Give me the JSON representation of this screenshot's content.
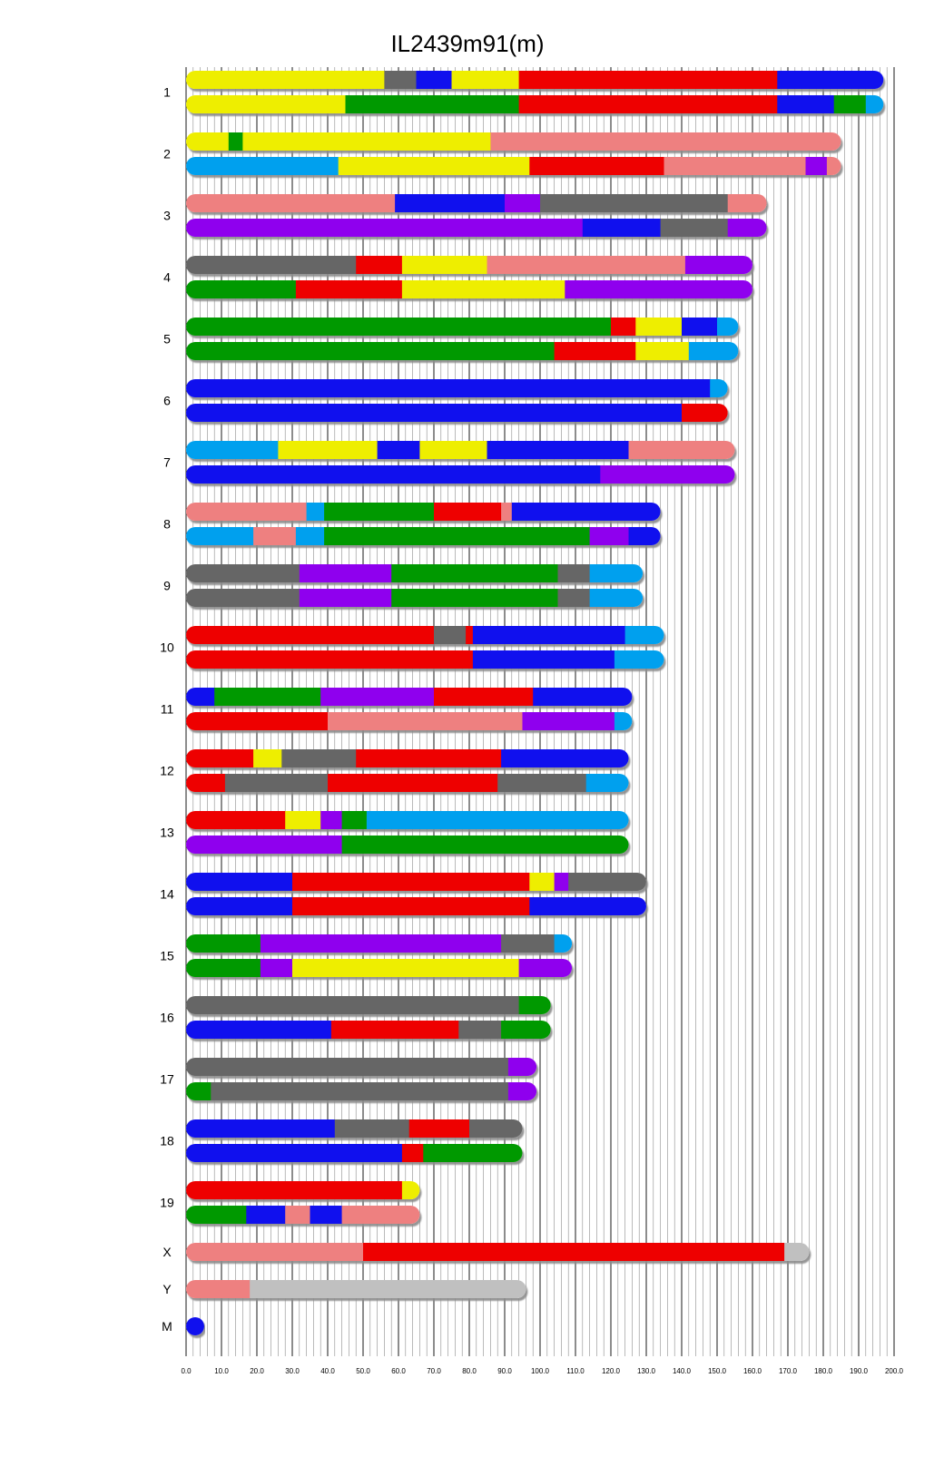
{
  "chart_data": {
    "type": "bar",
    "title": "IL2439m91(m)",
    "xlim": [
      0,
      200
    ],
    "x_ticks": [
      "0.0",
      "10.0",
      "20.0",
      "30.0",
      "40.0",
      "50.0",
      "60.0",
      "70.0",
      "80.0",
      "90.0",
      "100.0",
      "110.0",
      "120.0",
      "130.0",
      "140.0",
      "150.0",
      "160.0",
      "170.0",
      "180.0",
      "190.0",
      "200.0"
    ],
    "grid": true,
    "palette": {
      "Y": "#eeee00",
      "G": "#666666",
      "B": "#1010ee",
      "R": "#ee0000",
      "N": "#009900",
      "C": "#00a0ee",
      "P": "#ee8080",
      "V": "#8f00ee",
      "L": "#c0c0c0"
    },
    "chromosomes": [
      {
        "name": "1",
        "length": 197,
        "tracks": [
          [
            [
              0,
              56,
              "Y"
            ],
            [
              56,
              65,
              "G"
            ],
            [
              65,
              75,
              "B"
            ],
            [
              75,
              94,
              "Y"
            ],
            [
              94,
              167,
              "R"
            ],
            [
              167,
              197,
              "B"
            ]
          ],
          [
            [
              0,
              45,
              "Y"
            ],
            [
              45,
              94,
              "N"
            ],
            [
              94,
              167,
              "R"
            ],
            [
              167,
              183,
              "B"
            ],
            [
              183,
              192,
              "N"
            ],
            [
              192,
              197,
              "C"
            ]
          ]
        ]
      },
      {
        "name": "2",
        "length": 185,
        "tracks": [
          [
            [
              0,
              12,
              "Y"
            ],
            [
              12,
              16,
              "N"
            ],
            [
              16,
              86,
              "Y"
            ],
            [
              86,
              185,
              "P"
            ]
          ],
          [
            [
              0,
              43,
              "C"
            ],
            [
              43,
              97,
              "Y"
            ],
            [
              97,
              135,
              "R"
            ],
            [
              135,
              175,
              "P"
            ],
            [
              175,
              181,
              "V"
            ],
            [
              181,
              185,
              "P"
            ]
          ]
        ]
      },
      {
        "name": "3",
        "length": 164,
        "tracks": [
          [
            [
              0,
              59,
              "P"
            ],
            [
              59,
              90,
              "B"
            ],
            [
              90,
              100,
              "V"
            ],
            [
              100,
              153,
              "G"
            ],
            [
              153,
              164,
              "P"
            ]
          ],
          [
            [
              0,
              112,
              "V"
            ],
            [
              112,
              134,
              "B"
            ],
            [
              134,
              153,
              "G"
            ],
            [
              153,
              164,
              "V"
            ]
          ]
        ]
      },
      {
        "name": "4",
        "length": 160,
        "tracks": [
          [
            [
              0,
              48,
              "G"
            ],
            [
              48,
              61,
              "R"
            ],
            [
              61,
              85,
              "Y"
            ],
            [
              85,
              141,
              "P"
            ],
            [
              141,
              160,
              "V"
            ]
          ],
          [
            [
              0,
              31,
              "N"
            ],
            [
              31,
              61,
              "R"
            ],
            [
              61,
              107,
              "Y"
            ],
            [
              107,
              160,
              "V"
            ]
          ]
        ]
      },
      {
        "name": "5",
        "length": 156,
        "tracks": [
          [
            [
              0,
              120,
              "N"
            ],
            [
              120,
              127,
              "R"
            ],
            [
              127,
              140,
              "Y"
            ],
            [
              140,
              150,
              "B"
            ],
            [
              150,
              156,
              "C"
            ]
          ],
          [
            [
              0,
              104,
              "N"
            ],
            [
              104,
              127,
              "R"
            ],
            [
              127,
              142,
              "Y"
            ],
            [
              142,
              156,
              "C"
            ]
          ]
        ]
      },
      {
        "name": "6",
        "length": 153,
        "tracks": [
          [
            [
              0,
              148,
              "B"
            ],
            [
              148,
              153,
              "C"
            ]
          ],
          [
            [
              0,
              140,
              "B"
            ],
            [
              140,
              153,
              "R"
            ]
          ]
        ]
      },
      {
        "name": "7",
        "length": 155,
        "tracks": [
          [
            [
              0,
              26,
              "C"
            ],
            [
              26,
              54,
              "Y"
            ],
            [
              54,
              66,
              "B"
            ],
            [
              66,
              85,
              "Y"
            ],
            [
              85,
              125,
              "B"
            ],
            [
              125,
              155,
              "P"
            ]
          ],
          [
            [
              0,
              117,
              "B"
            ],
            [
              117,
              155,
              "V"
            ]
          ]
        ]
      },
      {
        "name": "8",
        "length": 134,
        "tracks": [
          [
            [
              0,
              34,
              "P"
            ],
            [
              34,
              39,
              "C"
            ],
            [
              39,
              70,
              "N"
            ],
            [
              70,
              89,
              "R"
            ],
            [
              89,
              92,
              "P"
            ],
            [
              92,
              134,
              "B"
            ]
          ],
          [
            [
              0,
              19,
              "C"
            ],
            [
              19,
              31,
              "P"
            ],
            [
              31,
              39,
              "C"
            ],
            [
              39,
              114,
              "N"
            ],
            [
              114,
              125,
              "V"
            ],
            [
              125,
              134,
              "B"
            ]
          ]
        ]
      },
      {
        "name": "9",
        "length": 129,
        "tracks": [
          [
            [
              0,
              32,
              "G"
            ],
            [
              32,
              58,
              "V"
            ],
            [
              58,
              105,
              "N"
            ],
            [
              105,
              114,
              "G"
            ],
            [
              114,
              129,
              "C"
            ]
          ],
          [
            [
              0,
              32,
              "G"
            ],
            [
              32,
              58,
              "V"
            ],
            [
              58,
              105,
              "N"
            ],
            [
              105,
              114,
              "G"
            ],
            [
              114,
              129,
              "C"
            ]
          ]
        ]
      },
      {
        "name": "10",
        "length": 135,
        "tracks": [
          [
            [
              0,
              70,
              "R"
            ],
            [
              70,
              79,
              "G"
            ],
            [
              79,
              81,
              "R"
            ],
            [
              81,
              124,
              "B"
            ],
            [
              124,
              135,
              "C"
            ]
          ],
          [
            [
              0,
              81,
              "R"
            ],
            [
              81,
              121,
              "B"
            ],
            [
              121,
              135,
              "C"
            ]
          ]
        ]
      },
      {
        "name": "11",
        "length": 126,
        "tracks": [
          [
            [
              0,
              8,
              "B"
            ],
            [
              8,
              38,
              "N"
            ],
            [
              38,
              70,
              "V"
            ],
            [
              70,
              98,
              "R"
            ],
            [
              98,
              126,
              "B"
            ]
          ],
          [
            [
              0,
              40,
              "R"
            ],
            [
              40,
              95,
              "P"
            ],
            [
              95,
              121,
              "V"
            ],
            [
              121,
              126,
              "C"
            ]
          ]
        ]
      },
      {
        "name": "12",
        "length": 125,
        "tracks": [
          [
            [
              0,
              19,
              "R"
            ],
            [
              19,
              27,
              "Y"
            ],
            [
              27,
              48,
              "G"
            ],
            [
              48,
              89,
              "R"
            ],
            [
              89,
              125,
              "B"
            ]
          ],
          [
            [
              0,
              11,
              "R"
            ],
            [
              11,
              40,
              "G"
            ],
            [
              40,
              88,
              "R"
            ],
            [
              88,
              113,
              "G"
            ],
            [
              113,
              125,
              "C"
            ]
          ]
        ]
      },
      {
        "name": "13",
        "length": 125,
        "tracks": [
          [
            [
              0,
              28,
              "R"
            ],
            [
              28,
              38,
              "Y"
            ],
            [
              38,
              44,
              "V"
            ],
            [
              44,
              51,
              "N"
            ],
            [
              51,
              125,
              "C"
            ]
          ],
          [
            [
              0,
              44,
              "V"
            ],
            [
              44,
              125,
              "N"
            ]
          ]
        ]
      },
      {
        "name": "14",
        "length": 130,
        "tracks": [
          [
            [
              0,
              30,
              "B"
            ],
            [
              30,
              97,
              "R"
            ],
            [
              97,
              104,
              "Y"
            ],
            [
              104,
              108,
              "V"
            ],
            [
              108,
              130,
              "G"
            ]
          ],
          [
            [
              0,
              30,
              "B"
            ],
            [
              30,
              97,
              "R"
            ],
            [
              97,
              130,
              "B"
            ]
          ]
        ]
      },
      {
        "name": "15",
        "length": 109,
        "tracks": [
          [
            [
              0,
              21,
              "N"
            ],
            [
              21,
              89,
              "V"
            ],
            [
              89,
              104,
              "G"
            ],
            [
              104,
              109,
              "C"
            ]
          ],
          [
            [
              0,
              21,
              "N"
            ],
            [
              21,
              30,
              "V"
            ],
            [
              30,
              94,
              "Y"
            ],
            [
              94,
              109,
              "V"
            ]
          ]
        ]
      },
      {
        "name": "16",
        "length": 103,
        "tracks": [
          [
            [
              0,
              94,
              "G"
            ],
            [
              94,
              103,
              "N"
            ]
          ],
          [
            [
              0,
              41,
              "B"
            ],
            [
              41,
              77,
              "R"
            ],
            [
              77,
              89,
              "G"
            ],
            [
              89,
              103,
              "N"
            ]
          ]
        ]
      },
      {
        "name": "17",
        "length": 99,
        "tracks": [
          [
            [
              0,
              91,
              "G"
            ],
            [
              91,
              99,
              "V"
            ]
          ],
          [
            [
              0,
              7,
              "N"
            ],
            [
              7,
              91,
              "G"
            ],
            [
              91,
              99,
              "V"
            ]
          ]
        ]
      },
      {
        "name": "18",
        "length": 95,
        "tracks": [
          [
            [
              0,
              42,
              "B"
            ],
            [
              42,
              63,
              "G"
            ],
            [
              63,
              80,
              "R"
            ],
            [
              80,
              95,
              "G"
            ]
          ],
          [
            [
              0,
              61,
              "B"
            ],
            [
              61,
              67,
              "R"
            ],
            [
              67,
              95,
              "N"
            ]
          ]
        ]
      },
      {
        "name": "19",
        "length": 66,
        "tracks": [
          [
            [
              0,
              61,
              "R"
            ],
            [
              61,
              66,
              "Y"
            ]
          ],
          [
            [
              0,
              17,
              "N"
            ],
            [
              17,
              28,
              "B"
            ],
            [
              28,
              35,
              "P"
            ],
            [
              35,
              44,
              "B"
            ],
            [
              44,
              66,
              "P"
            ]
          ]
        ]
      },
      {
        "name": "X",
        "length": 176,
        "tracks": [
          [
            [
              0,
              50,
              "P"
            ],
            [
              50,
              169,
              "R"
            ],
            [
              169,
              176,
              "L"
            ]
          ]
        ]
      },
      {
        "name": "Y",
        "length": 96,
        "tracks": [
          [
            [
              0,
              18,
              "P"
            ],
            [
              18,
              96,
              "L"
            ]
          ]
        ]
      },
      {
        "name": "M",
        "length": 2,
        "tracks": [
          [
            [
              0,
              2,
              "B"
            ]
          ]
        ]
      }
    ]
  }
}
